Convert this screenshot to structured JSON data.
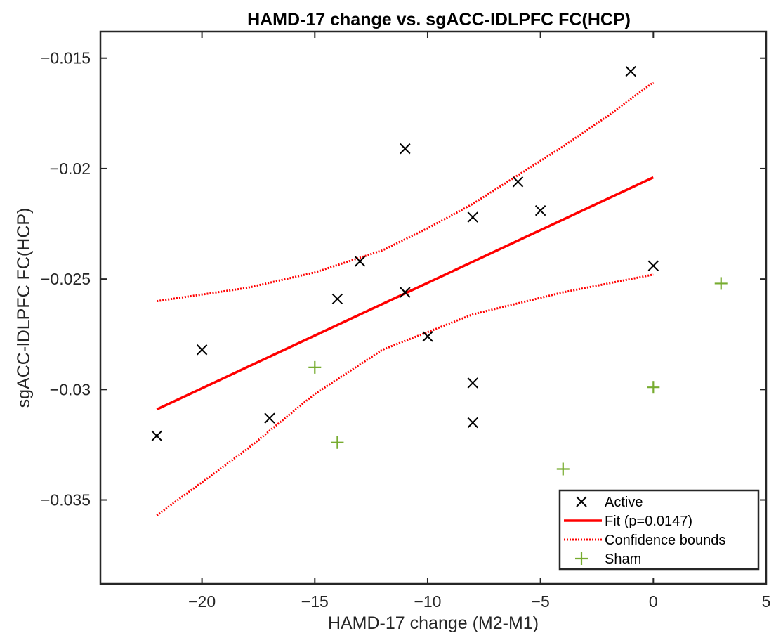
{
  "chart_data": {
    "type": "scatter",
    "title": "HAMD-17 change vs. sgACC-lDLPFC FC(HCP)",
    "xlabel": "HAMD-17 change (M2-M1)",
    "ylabel": "sgACC-lDLPFC FC(HCP)",
    "xlim": [
      -24.5,
      5
    ],
    "ylim": [
      -0.0388,
      -0.0138
    ],
    "xticks": [
      -20,
      -15,
      -10,
      -5,
      0,
      5
    ],
    "xtick_labels": [
      "−20",
      "−15",
      "−10",
      "−5",
      "0",
      "5"
    ],
    "yticks": [
      -0.015,
      -0.02,
      -0.025,
      -0.03,
      -0.035
    ],
    "ytick_labels": [
      "−0.015",
      "−0.02",
      "−0.025",
      "−0.03",
      "−0.035"
    ],
    "grid": false,
    "legend_position": "bottom-right",
    "series": [
      {
        "name": "Active",
        "marker": "x",
        "color": "#000000",
        "points": [
          [
            -22,
            -0.0321
          ],
          [
            -20,
            -0.0282
          ],
          [
            -17,
            -0.0313
          ],
          [
            -14,
            -0.0259
          ],
          [
            -13,
            -0.0242
          ],
          [
            -11,
            -0.0191
          ],
          [
            -11,
            -0.0256
          ],
          [
            -10,
            -0.0276
          ],
          [
            -8,
            -0.0222
          ],
          [
            -8,
            -0.0297
          ],
          [
            -8,
            -0.0315
          ],
          [
            -6,
            -0.0206
          ],
          [
            -5,
            -0.0219
          ],
          [
            -1,
            -0.0156
          ],
          [
            0,
            -0.0244
          ]
        ]
      },
      {
        "name": "Fit (p=0.0147)",
        "style": "line",
        "color": "#ff0000",
        "points": [
          [
            -22,
            -0.0309
          ],
          [
            0,
            -0.0204
          ]
        ]
      },
      {
        "name": "Confidence bounds",
        "style": "dotted",
        "color": "#ff0000",
        "upper": [
          [
            -22,
            -0.026
          ],
          [
            -18,
            -0.0254
          ],
          [
            -15,
            -0.0247
          ],
          [
            -12,
            -0.0237
          ],
          [
            -10,
            -0.0227
          ],
          [
            -8,
            -0.0216
          ],
          [
            -6,
            -0.0203
          ],
          [
            -4,
            -0.019
          ],
          [
            -2,
            -0.0176
          ],
          [
            0,
            -0.0161
          ]
        ],
        "lower": [
          [
            -22,
            -0.0357
          ],
          [
            -18,
            -0.0327
          ],
          [
            -15,
            -0.0302
          ],
          [
            -12,
            -0.0282
          ],
          [
            -10,
            -0.0274
          ],
          [
            -8,
            -0.0266
          ],
          [
            -6,
            -0.0261
          ],
          [
            -4,
            -0.0256
          ],
          [
            -2,
            -0.0252
          ],
          [
            0,
            -0.0248
          ]
        ]
      },
      {
        "name": "Sham",
        "marker": "+",
        "color": "#77ac30",
        "points": [
          [
            -15,
            -0.029
          ],
          [
            -14,
            -0.0324
          ],
          [
            -4,
            -0.0336
          ],
          [
            0,
            -0.0299
          ],
          [
            3,
            -0.0252
          ]
        ]
      }
    ]
  }
}
